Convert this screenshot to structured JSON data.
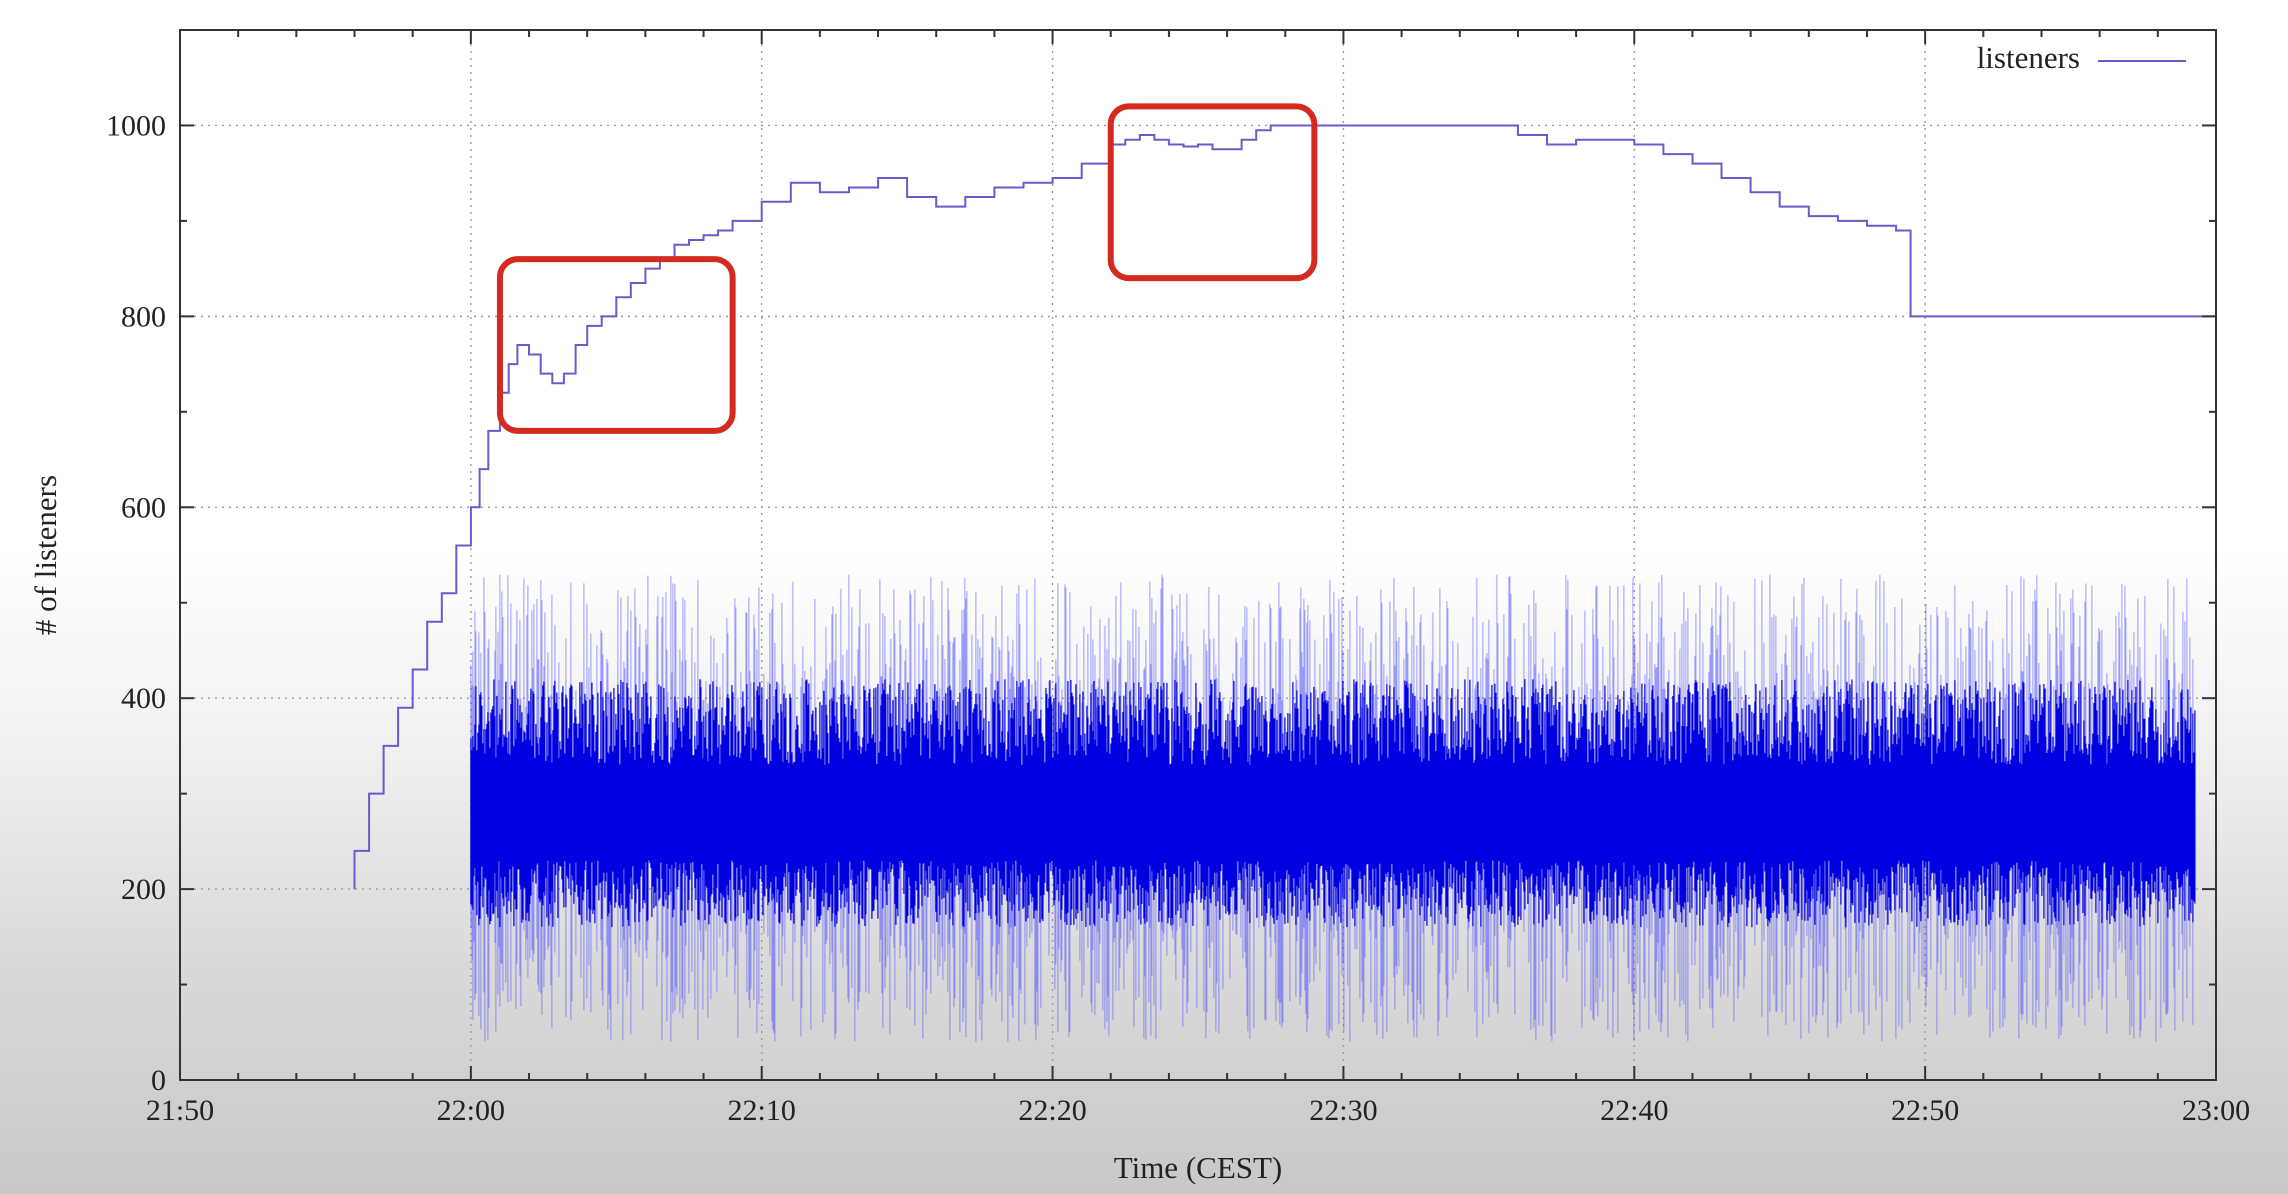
{
  "chart_data": {
    "type": "line",
    "xlabel": "Time (CEST)",
    "ylabel": "# of listeners",
    "x_ticks": [
      "21:50",
      "22:00",
      "22:10",
      "22:20",
      "22:30",
      "22:40",
      "22:50",
      "23:00"
    ],
    "y_ticks": [
      0,
      200,
      400,
      600,
      800,
      1000
    ],
    "xlim": [
      "21:50",
      "23:00"
    ],
    "ylim": [
      0,
      1100
    ],
    "grid": true,
    "legend_placement": "top-right",
    "colors": {
      "series": "#6a5acd",
      "band": "#0000e0",
      "highlight": "#d42a20"
    },
    "series": [
      {
        "name": "listeners",
        "x_minutes_after_2150": [
          6,
          6.5,
          7,
          7.5,
          8,
          8.5,
          9,
          9.5,
          10,
          10.3,
          10.6,
          11,
          11.3,
          11.6,
          12,
          12.4,
          12.8,
          13.2,
          13.6,
          14,
          14.5,
          15,
          15.5,
          16,
          16.5,
          17,
          17.5,
          18,
          18.5,
          19,
          20,
          21,
          22,
          23,
          24,
          25,
          26,
          27,
          28,
          29,
          30,
          31,
          32,
          32.5,
          33,
          33.5,
          34,
          34.5,
          35,
          35.5,
          36,
          36.5,
          37,
          37.5,
          38,
          39,
          40,
          41,
          42,
          43,
          44,
          45,
          46,
          47,
          48,
          49,
          50,
          51,
          52,
          53,
          54,
          55,
          56,
          57,
          58,
          59,
          59.5,
          60,
          62,
          64,
          66,
          68,
          69,
          69.3,
          69.5
        ],
        "values": [
          240,
          300,
          350,
          390,
          430,
          480,
          510,
          560,
          600,
          640,
          680,
          720,
          750,
          770,
          760,
          740,
          730,
          740,
          770,
          790,
          800,
          820,
          835,
          850,
          860,
          875,
          880,
          885,
          890,
          900,
          920,
          940,
          930,
          935,
          945,
          925,
          915,
          925,
          935,
          940,
          945,
          960,
          980,
          985,
          990,
          985,
          980,
          978,
          980,
          975,
          975,
          985,
          995,
          1000,
          1000,
          1000,
          1000,
          1000,
          1000,
          1000,
          1000,
          1000,
          990,
          980,
          985,
          985,
          980,
          970,
          960,
          945,
          930,
          915,
          905,
          900,
          895,
          890,
          800,
          800,
          800,
          800,
          800,
          800,
          800,
          800,
          800
        ]
      }
    ],
    "fluctuation_band": {
      "x_range_minutes_after_2150": [
        10,
        69.3
      ],
      "center": 280,
      "min": 40,
      "max": 530
    },
    "highlights": [
      {
        "x_range": [
          "22:01",
          "22:09"
        ],
        "y_range": [
          680,
          860
        ]
      },
      {
        "x_range": [
          "22:22",
          "22:29"
        ],
        "y_range": [
          840,
          1020
        ]
      }
    ]
  }
}
